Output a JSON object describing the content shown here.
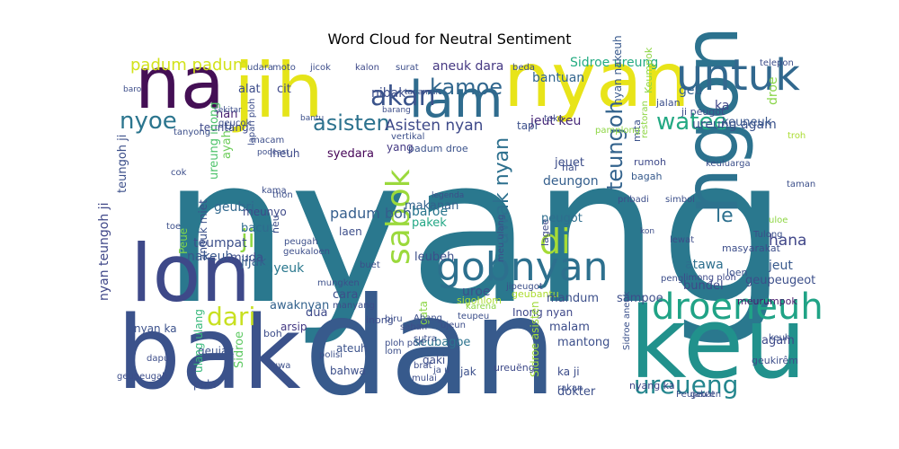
{
  "title": "Word Cloud for Neutral Sentiment",
  "colors": {
    "background": "#ffffff",
    "dark_purple": "#440154",
    "indigo": "#46327e",
    "blue": "#365c8d",
    "teal": "#277f8e",
    "green_teal": "#1fa187",
    "green": "#4ac16d",
    "lime": "#a0da39",
    "yellow": "#fde725"
  },
  "words": [
    {
      "text": "nyang",
      "color": "#2a788e"
    },
    {
      "text": "dan",
      "color": "#375a8c"
    },
    {
      "text": "bak",
      "color": "#3b528b"
    },
    {
      "text": "keu",
      "color": "#21918c"
    },
    {
      "text": "lon",
      "color": "#3e4989"
    },
    {
      "text": "ngon",
      "color": "#2c728e"
    },
    {
      "text": "nyan",
      "color": "#e8e419"
    },
    {
      "text": "na",
      "color": "#440f55"
    },
    {
      "text": "jih",
      "color": "#e5e419"
    },
    {
      "text": "lam",
      "color": "#2f6c8e"
    },
    {
      "text": "untuk",
      "color": "#31688e"
    },
    {
      "text": "gobnyan",
      "color": "#2d708e"
    },
    {
      "text": "droeneuh",
      "color": "#20a386"
    },
    {
      "text": "sabok",
      "color": "#9bd93c"
    },
    {
      "text": "di",
      "color": "#a5db36"
    },
    {
      "text": "akan",
      "color": "#3a538b"
    },
    {
      "text": "nyoe",
      "color": "#2b758e"
    },
    {
      "text": "watee",
      "color": "#23a983"
    },
    {
      "text": "kamoe",
      "color": "#31678e"
    },
    {
      "text": "teungoh",
      "color": "#33638d"
    },
    {
      "text": "awak nyan",
      "color": "#2d708e"
    },
    {
      "text": "dari",
      "color": "#c8e020"
    },
    {
      "text": "ureueng",
      "color": "#24868e"
    },
    {
      "text": "ji",
      "color": "#90d743"
    },
    {
      "text": "asisten",
      "color": "#2c728e"
    },
    {
      "text": "padum padum",
      "color": "#d2e21b"
    },
    {
      "text": "Asisten nyan",
      "color": "#3e4989"
    },
    {
      "text": "le",
      "color": "#2d708e"
    },
    {
      "text": "hana",
      "color": "#404688"
    },
    {
      "text": "ureung agam",
      "color": "#3b528b"
    },
    {
      "text": "jeut keu",
      "color": "#482979"
    },
    {
      "text": "Sidroe ureung",
      "color": "#25ac82"
    },
    {
      "text": "bantuan",
      "color": "#32658e"
    },
    {
      "text": "aneuk dara",
      "color": "#453882"
    },
    {
      "text": "padum boh",
      "color": "#355e8d"
    },
    {
      "text": "nyan nakeuh",
      "color": "#38598c"
    },
    {
      "text": "geu",
      "color": "#34618d"
    },
    {
      "text": "ka",
      "color": "#3f4788"
    },
    {
      "text": "droe",
      "color": "#89d548"
    },
    {
      "text": "keuneuk",
      "color": "#39568c"
    },
    {
      "text": "nibak",
      "color": "#3d4e8a"
    },
    {
      "text": "teuntang",
      "color": "#3e4989"
    },
    {
      "text": "alat",
      "color": "#3d4d8a"
    },
    {
      "text": "cit",
      "color": "#3f4889"
    },
    {
      "text": "nan",
      "color": "#481f70"
    },
    {
      "text": "u",
      "color": "#3b518b"
    },
    {
      "text": "tapi",
      "color": "#3c508b"
    },
    {
      "text": "yang",
      "color": "#443983"
    },
    {
      "text": "nyan teungoh ji",
      "color": "#3f4788"
    },
    {
      "text": "teungoh ji",
      "color": "#3c4f8a"
    },
    {
      "text": "geubri",
      "color": "#31688e"
    },
    {
      "text": "ureung inong",
      "color": "#4ec36b"
    },
    {
      "text": "ayah",
      "color": "#6ccd5a"
    },
    {
      "text": "syedara",
      "color": "#450457"
    },
    {
      "text": "lheuh",
      "color": "#3e4a89"
    },
    {
      "text": "padum droe",
      "color": "#3b528b"
    },
    {
      "text": "makanan",
      "color": "#33628d"
    },
    {
      "text": "jeuet",
      "color": "#3d4e8a"
    },
    {
      "text": "deungon",
      "color": "#355f8d"
    },
    {
      "text": "baroe",
      "color": "#2a768e"
    },
    {
      "text": "pakek",
      "color": "#22a785"
    },
    {
      "text": "peugot",
      "color": "#2e6e8e"
    },
    {
      "text": "rumoh",
      "color": "#3e4989"
    },
    {
      "text": "bagah",
      "color": "#375a8c"
    },
    {
      "text": "keuluarga",
      "color": "#3c4f8a"
    },
    {
      "text": "mita",
      "color": "#3b528b"
    },
    {
      "text": "hai",
      "color": "#3d4e8a"
    },
    {
      "text": "toko",
      "color": "#3e4989"
    },
    {
      "text": "teumpat",
      "color": "#3c4f8a"
    },
    {
      "text": "bacut",
      "color": "#2f6b8e"
    },
    {
      "text": "meunyo",
      "color": "#3e4a89"
    },
    {
      "text": "aneuk miet",
      "color": "#3b518b"
    },
    {
      "text": "Peue",
      "color": "#7fd34e"
    },
    {
      "text": "nakeuh",
      "color": "#39568c"
    },
    {
      "text": "muda",
      "color": "#3d4d8a"
    },
    {
      "text": "jijak",
      "color": "#34608d"
    },
    {
      "text": "rayeuk",
      "color": "#2a788e"
    },
    {
      "text": "neu",
      "color": "#3d4d8a"
    },
    {
      "text": "laen",
      "color": "#3d4e8a"
    },
    {
      "text": "leubeh",
      "color": "#3c4f8a"
    },
    {
      "text": "sigohlom",
      "color": "#aadc32"
    },
    {
      "text": "geubantu",
      "color": "#addc30"
    },
    {
      "text": "atawa",
      "color": "#2e6f8e"
    },
    {
      "text": "jeut",
      "color": "#38598c"
    },
    {
      "text": "geupeugeot",
      "color": "#3c4f8a"
    },
    {
      "text": "meurumpok",
      "color": "#481a6c"
    },
    {
      "text": "bundel",
      "color": "#3e4989"
    },
    {
      "text": "mandum",
      "color": "#3c4f8a"
    },
    {
      "text": "sampoe",
      "color": "#3d4e8a"
    },
    {
      "text": "uroe",
      "color": "#3c508b"
    },
    {
      "text": "cara",
      "color": "#3c4f8a"
    },
    {
      "text": "dua",
      "color": "#3e4989"
    },
    {
      "text": "awaknyan",
      "color": "#33628d"
    },
    {
      "text": "nyan ka",
      "color": "#3b518b"
    },
    {
      "text": "arsip",
      "color": "#443983"
    },
    {
      "text": "inong",
      "color": "#3d4d8a"
    },
    {
      "text": "seubagoe",
      "color": "#2c738e"
    },
    {
      "text": "Inong nyan",
      "color": "#3f4889"
    },
    {
      "text": "malam",
      "color": "#3d4e8a"
    },
    {
      "text": "mantong",
      "color": "#3c4f8a"
    },
    {
      "text": "Sidroe asisten",
      "color": "#9fda3a"
    },
    {
      "text": "ateuh",
      "color": "#3b528b"
    },
    {
      "text": "bahwa",
      "color": "#3c4f8a"
    },
    {
      "text": "gaki",
      "color": "#3d4e8a"
    },
    {
      "text": "jak",
      "color": "#3c508b"
    },
    {
      "text": "ka ji",
      "color": "#3d4d8a"
    },
    {
      "text": "Sidroe aneuk",
      "color": "#3b518b"
    },
    {
      "text": "agam",
      "color": "#3e4989"
    },
    {
      "text": "nyang ka",
      "color": "#3f4788"
    },
    {
      "text": "dokter",
      "color": "#3c4f8a"
    },
    {
      "text": "ureuëng",
      "color": "#3e4a89"
    },
    {
      "text": "geujak",
      "color": "#3b528b"
    },
    {
      "text": "ulang ulang",
      "color": "#35b779"
    },
    {
      "text": "Sidroe",
      "color": "#5ec962"
    },
    {
      "text": "pola",
      "color": "#3c4f8a"
    },
    {
      "text": "boh",
      "color": "#3d4d8a"
    },
    {
      "text": "gata",
      "color": "#8bd646"
    },
    {
      "text": "limong ploh",
      "color": "#3e4989"
    },
    {
      "text": "loen",
      "color": "#3b518b"
    },
    {
      "text": "Tulong",
      "color": "#3c4f8a"
    },
    {
      "text": "masyarakat",
      "color": "#3d4e8a"
    },
    {
      "text": "lewat",
      "color": "#3d4d8a"
    },
    {
      "text": "keuh",
      "color": "#3c508b"
    },
    {
      "text": "geukirêm",
      "color": "#3d4e8a"
    },
    {
      "text": "lagee",
      "color": "#3e4989"
    },
    {
      "text": "ji peugot",
      "color": "#3d4e8a"
    },
    {
      "text": "Keumpok",
      "color": "#8dd544"
    },
    {
      "text": "jalan",
      "color": "#3c4f8a"
    },
    {
      "text": "restoran",
      "color": "#8ed645"
    },
    {
      "text": "troh",
      "color": "#aadc32"
    },
    {
      "text": "taman",
      "color": "#3c4f8a"
    },
    {
      "text": "telepon",
      "color": "#3d4e8a"
    },
    {
      "text": "udara",
      "color": "#3c4f8a"
    },
    {
      "text": "surat",
      "color": "#3d4e8a"
    },
    {
      "text": "kalon",
      "color": "#3e4989"
    },
    {
      "text": "beda",
      "color": "#3c4f8a"
    },
    {
      "text": "moto",
      "color": "#3d4e8a"
    },
    {
      "text": "jicok",
      "color": "#3d4d8a"
    },
    {
      "text": "baro",
      "color": "#3d4e8a"
    },
    {
      "text": "sekitar",
      "color": "#3c4f8a"
    },
    {
      "text": "geucok",
      "color": "#3d4e8a"
    },
    {
      "text": "bantu",
      "color": "#3c4f8a"
    },
    {
      "text": "lapan ploh",
      "color": "#3d4e8a"
    },
    {
      "text": "tanyong",
      "color": "#3c4f8a"
    },
    {
      "text": "macam",
      "color": "#3d4e8a"
    },
    {
      "text": "tanaman",
      "color": "#3c4f8a"
    },
    {
      "text": "barang",
      "color": "#3d4e8a"
    },
    {
      "text": "vertikal",
      "color": "#3c4f8a"
    },
    {
      "text": "pamplong",
      "color": "#8ed645"
    },
    {
      "text": "podcast",
      "color": "#3d4e8a"
    },
    {
      "text": "legenda",
      "color": "#3c4f8a"
    },
    {
      "text": "pribadi",
      "color": "#3d4e8a"
    },
    {
      "text": "simbol",
      "color": "#3c4f8a"
    },
    {
      "text": "kon",
      "color": "#3d4e8a"
    },
    {
      "text": "peugah",
      "color": "#3c4f8a"
    },
    {
      "text": "geukaloen",
      "color": "#3d4e8a"
    },
    {
      "text": "buet",
      "color": "#3c4f8a"
    },
    {
      "text": "peng",
      "color": "#3d4e8a"
    },
    {
      "text": "mungken",
      "color": "#3c4f8a"
    },
    {
      "text": "manyang",
      "color": "#3d4e8a"
    },
    {
      "text": "jipeugot",
      "color": "#3c4f8a"
    },
    {
      "text": "biru",
      "color": "#3d4e8a"
    },
    {
      "text": "teupeu",
      "color": "#3c4f8a"
    },
    {
      "text": "ploh pon",
      "color": "#3d4e8a"
    },
    {
      "text": "sutra",
      "color": "#3c4f8a"
    },
    {
      "text": "ujeun",
      "color": "#3d4e8a"
    },
    {
      "text": "lom",
      "color": "#3c4f8a"
    },
    {
      "text": "brat",
      "color": "#3d4e8a"
    },
    {
      "text": "luwa",
      "color": "#3c4f8a"
    },
    {
      "text": "dapu",
      "color": "#3d4e8a"
    },
    {
      "text": "polisi",
      "color": "#3c4f8a"
    },
    {
      "text": "mulai",
      "color": "#3d4e8a"
    },
    {
      "text": "rakan",
      "color": "#3c4f8a"
    },
    {
      "text": "karena",
      "color": "#8ed645"
    },
    {
      "text": "Peujabat",
      "color": "#3d4e8a"
    },
    {
      "text": "geu'en",
      "color": "#3c4f8a"
    },
    {
      "text": "geupeugah",
      "color": "#3d4e8a"
    },
    {
      "text": "Abang",
      "color": "#3c4f8a"
    },
    {
      "text": "saban",
      "color": "#3d4e8a"
    },
    {
      "text": "toe",
      "color": "#3c4f8a"
    },
    {
      "text": "kama",
      "color": "#3d4e8a"
    },
    {
      "text": "thon",
      "color": "#3c4f8a"
    },
    {
      "text": "uloe",
      "color": "#8ed645"
    },
    {
      "text": "cok",
      "color": "#3d4e8a"
    },
    {
      "text": "ja u",
      "color": "#3c4f8a"
    },
    {
      "text": "meu ulang",
      "color": "#3d4e8a"
    }
  ]
}
